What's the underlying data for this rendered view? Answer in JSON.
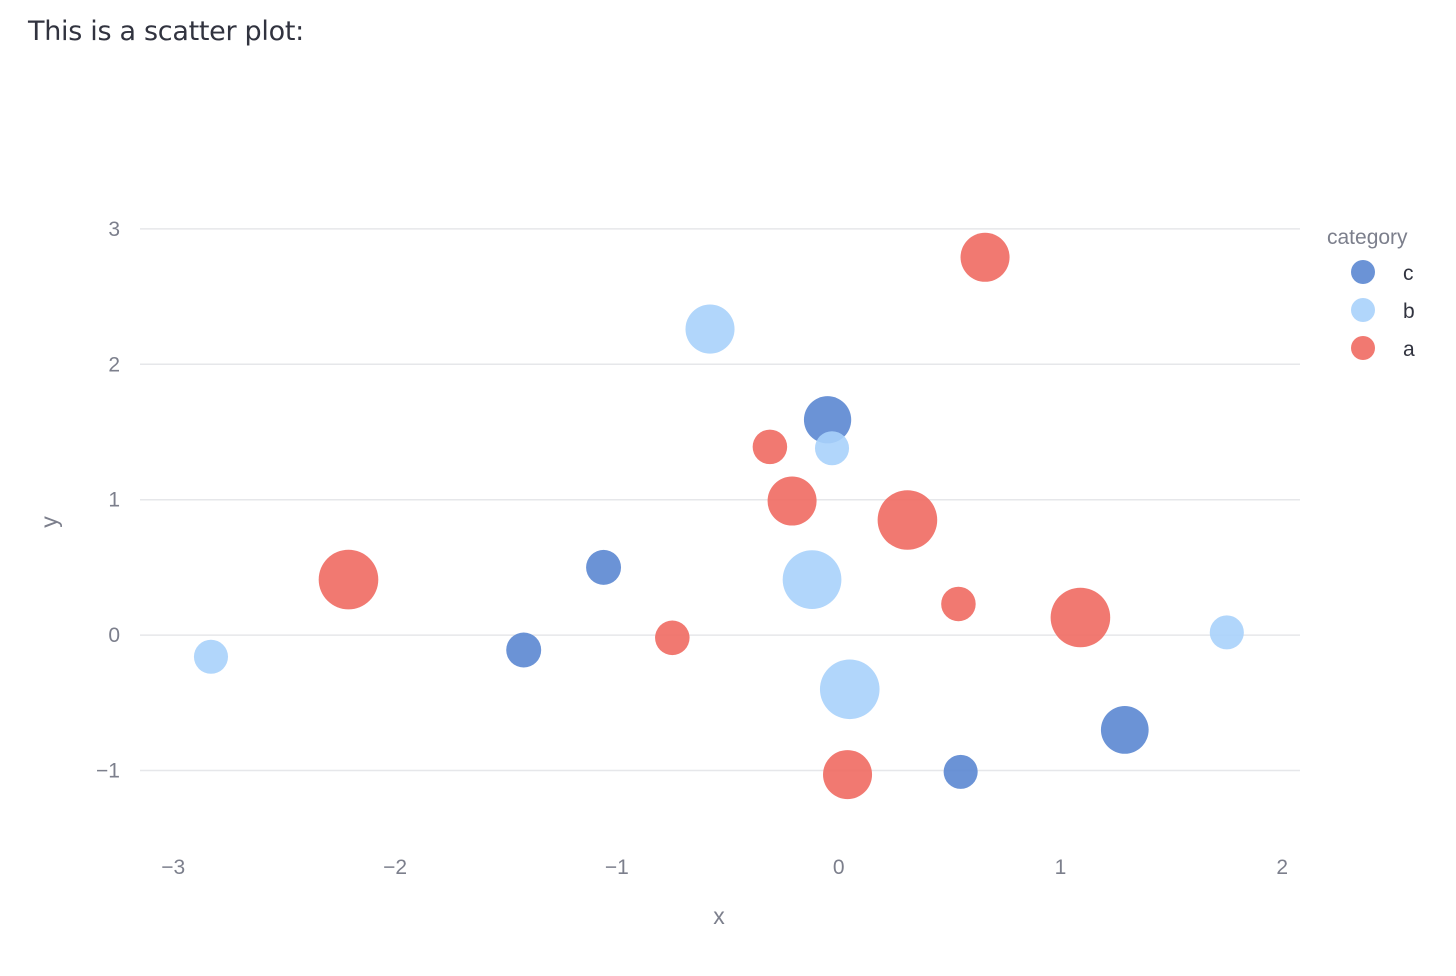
{
  "page": {
    "caption": "This is a scatter plot:"
  },
  "chart_data": {
    "type": "scatter",
    "title": "",
    "xlabel": "x",
    "ylabel": "y",
    "xlim": [
      -3.15,
      2.08
    ],
    "ylim": [
      -1.55,
      3.25
    ],
    "x_ticks": [
      -3,
      -2,
      -1,
      0,
      1,
      2
    ],
    "y_ticks": [
      -1,
      0,
      1,
      2,
      3
    ],
    "x_tick_labels": [
      "−3",
      "−2",
      "−1",
      "0",
      "1",
      "2"
    ],
    "y_tick_labels": [
      "−1",
      "0",
      "1",
      "2",
      "3"
    ],
    "grid": "horizontal",
    "legend": {
      "title": "category",
      "position": "right",
      "entries": [
        "c",
        "b",
        "a"
      ]
    },
    "colors": {
      "c": "#5b87d2",
      "b": "#a9d1fb",
      "a": "#ef6a62"
    },
    "series": [
      {
        "name": "c",
        "points": [
          {
            "x": -0.05,
            "y": 1.59,
            "size": 0.62
          },
          {
            "x": -1.06,
            "y": 0.5,
            "size": 0.34
          },
          {
            "x": -1.42,
            "y": -0.11,
            "size": 0.34
          },
          {
            "x": 1.29,
            "y": -0.7,
            "size": 0.63
          },
          {
            "x": 0.55,
            "y": -1.01,
            "size": 0.32
          }
        ]
      },
      {
        "name": "b",
        "points": [
          {
            "x": -0.58,
            "y": 2.26,
            "size": 0.66
          },
          {
            "x": -0.03,
            "y": 1.38,
            "size": 0.32
          },
          {
            "x": -0.12,
            "y": 0.41,
            "size": 0.88
          },
          {
            "x": 0.05,
            "y": -0.4,
            "size": 0.9
          },
          {
            "x": -2.83,
            "y": -0.16,
            "size": 0.32
          },
          {
            "x": 1.75,
            "y": 0.02,
            "size": 0.32
          }
        ]
      },
      {
        "name": "a",
        "points": [
          {
            "x": 0.66,
            "y": 2.79,
            "size": 0.66
          },
          {
            "x": -0.31,
            "y": 1.39,
            "size": 0.33
          },
          {
            "x": -0.21,
            "y": 0.99,
            "size": 0.66
          },
          {
            "x": 0.31,
            "y": 0.85,
            "size": 0.9
          },
          {
            "x": -2.21,
            "y": 0.41,
            "size": 0.9
          },
          {
            "x": 0.54,
            "y": 0.23,
            "size": 0.33
          },
          {
            "x": -0.75,
            "y": -0.02,
            "size": 0.33
          },
          {
            "x": 1.09,
            "y": 0.13,
            "size": 0.9
          },
          {
            "x": 0.04,
            "y": -1.03,
            "size": 0.66
          }
        ]
      }
    ]
  }
}
